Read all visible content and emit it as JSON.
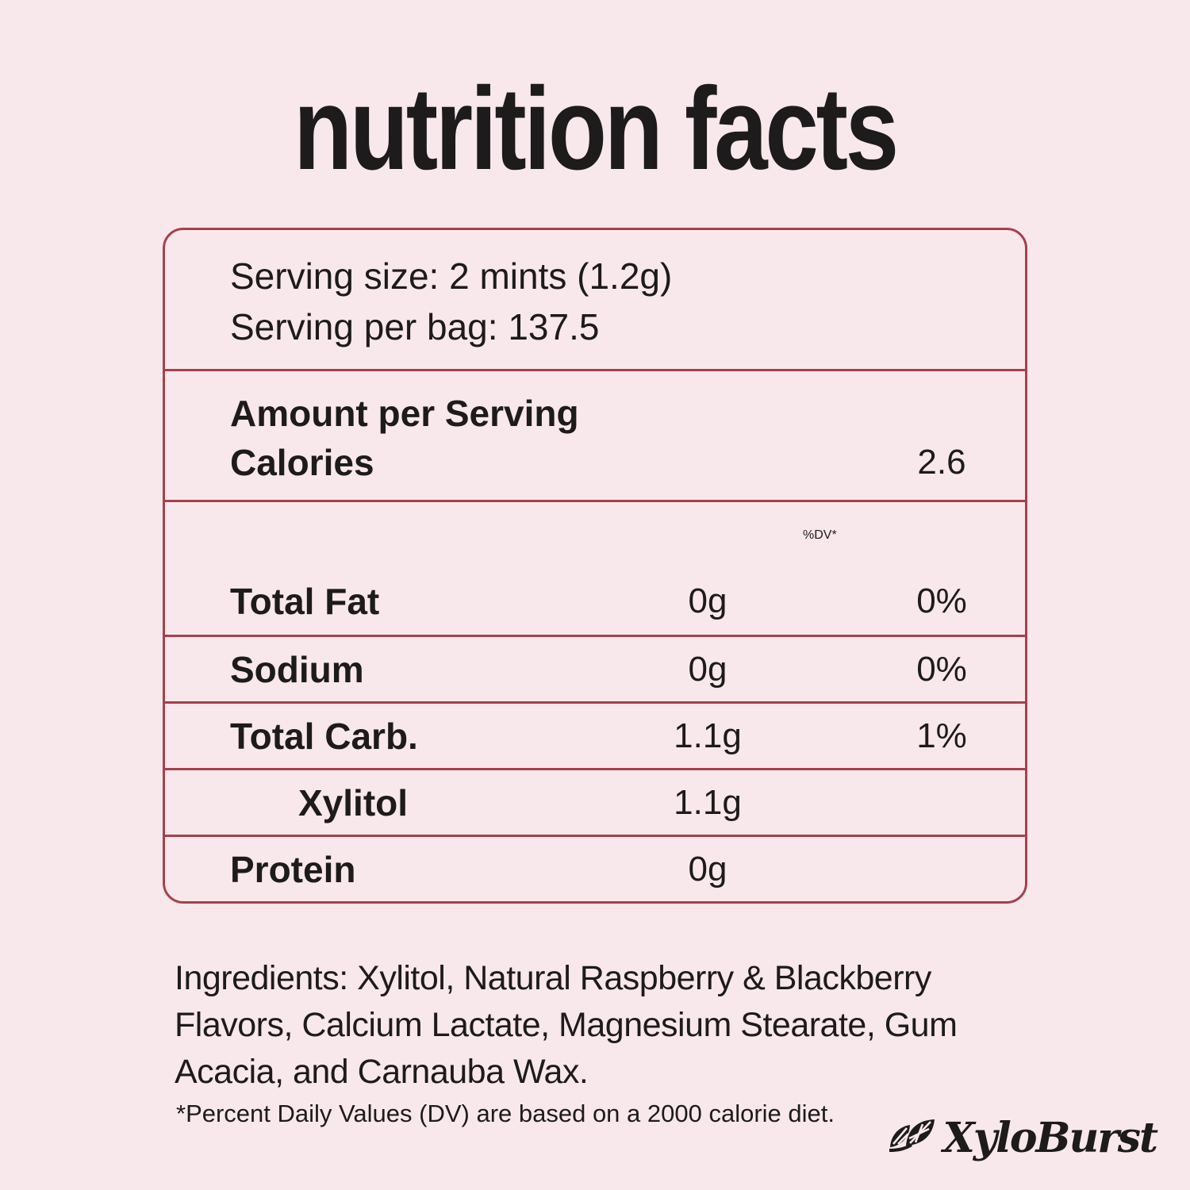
{
  "page": {
    "title": "nutrition facts",
    "background_color": "#f9e8eb",
    "border_color": "#a5414c",
    "text_color": "#1d1b1b"
  },
  "panel": {
    "serving_lines": [
      "Serving size: 2 mints (1.2g)",
      "Serving per bag: 137.5"
    ],
    "amount_per_serving_label": "Amount per Serving",
    "calories_label": "Calories",
    "calories_value": "2.6",
    "dv_header": "%DV*",
    "rows": [
      {
        "label": "Total Fat",
        "amount": "0g",
        "percent": "0%",
        "indent": false
      },
      {
        "label": "Sodium",
        "amount": "0g",
        "percent": "0%",
        "indent": false
      },
      {
        "label": "Total Carb.",
        "amount": "1.1g",
        "percent": "1%",
        "indent": false
      },
      {
        "label": "Xylitol",
        "amount": "1.1g",
        "percent": "",
        "indent": true
      },
      {
        "label": "Protein",
        "amount": "0g",
        "percent": "",
        "indent": false
      }
    ]
  },
  "ingredients": "Ingredients: Xylitol, Natural Raspberry & Blackberry Flavors, Calcium Lactate, Magnesium Stearate, Gum Acacia, and Carnauba Wax.",
  "footnote": "*Percent Daily Values (DV) are based on a 2000 calorie diet.",
  "brand": {
    "name": "XyloBurst",
    "icon": "leaf-icon"
  }
}
